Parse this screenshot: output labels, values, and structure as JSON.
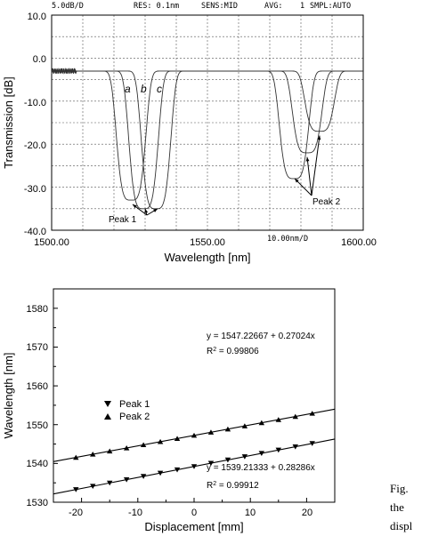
{
  "chart_data": [
    {
      "type": "line",
      "header": {
        "scale": "5.0dB/D",
        "res": "RES: 0.1nm",
        "sens": "SENS:MID",
        "avg": "AVG:",
        "avg_value": "1",
        "smpl": "SMPL:AUTO"
      },
      "xlabel": "Wavelength [nm]",
      "ylabel": "Transmission [dB]",
      "xlim": [
        1500,
        1600
      ],
      "ylim": [
        -40,
        10
      ],
      "x_ticks": [
        "1500.00",
        "1550.00",
        "1600.00"
      ],
      "x_div": "10.00nm/D",
      "y_ticks": [
        "10.0",
        "0.0",
        "-10.0",
        "-20.0",
        "-30.0",
        "-40.0"
      ],
      "grid": true,
      "series": [
        {
          "name": "a",
          "dips": [
            1525.5,
            1577.8
          ],
          "depths": [
            -33,
            -28
          ]
        },
        {
          "name": "b",
          "dips": [
            1529.5,
            1582.0
          ],
          "depths": [
            -35,
            -22
          ]
        },
        {
          "name": "c",
          "dips": [
            1533.5,
            1586.0
          ],
          "depths": [
            -35,
            -17
          ]
        }
      ],
      "annotations": [
        {
          "text": "Peak 1",
          "target_x": [
            1526,
            1530,
            1534
          ],
          "target_y": [
            -34,
            -35,
            -35
          ]
        },
        {
          "text": "Peak 2",
          "target_x": [
            1578,
            1582,
            1586
          ],
          "target_y": [
            -28,
            -23,
            -18
          ]
        }
      ]
    },
    {
      "type": "scatter",
      "xlabel": "Displacement [mm]",
      "ylabel": "Wavelength [nm]",
      "xlim": [
        -25,
        25
      ],
      "ylim": [
        1530,
        1585
      ],
      "x_ticks": [
        "-20",
        "-10",
        "0",
        "10",
        "20"
      ],
      "y_ticks": [
        "1530",
        "1540",
        "1550",
        "1560",
        "1570",
        "1580"
      ],
      "legend": "center-left",
      "series": [
        {
          "name": "Peak 1",
          "marker": "triangle-down",
          "x": [
            -21,
            -18,
            -15,
            -12,
            -9,
            -6,
            -3,
            0,
            3,
            6,
            9,
            12,
            15,
            18,
            21
          ],
          "fit_intercept": 1539.21333,
          "fit_slope": 0.28286,
          "equation": "y = 1539.21333 + 0.28286x",
          "r2_label": "R",
          "r2_value": " = 0.99912"
        },
        {
          "name": "Peak 2",
          "marker": "triangle-up",
          "x": [
            -21,
            -18,
            -15,
            -12,
            -9,
            -6,
            -3,
            0,
            3,
            6,
            9,
            12,
            15,
            18,
            21
          ],
          "fit_intercept": 1547.22667,
          "fit_slope": 0.27024,
          "equation": "y = 1547.22667 + 0.27024x",
          "r2_label": "R",
          "r2_value": " = 0.99806"
        }
      ]
    }
  ],
  "caption": {
    "line1": "Fig.",
    "line2": "the",
    "line3": "displ"
  }
}
